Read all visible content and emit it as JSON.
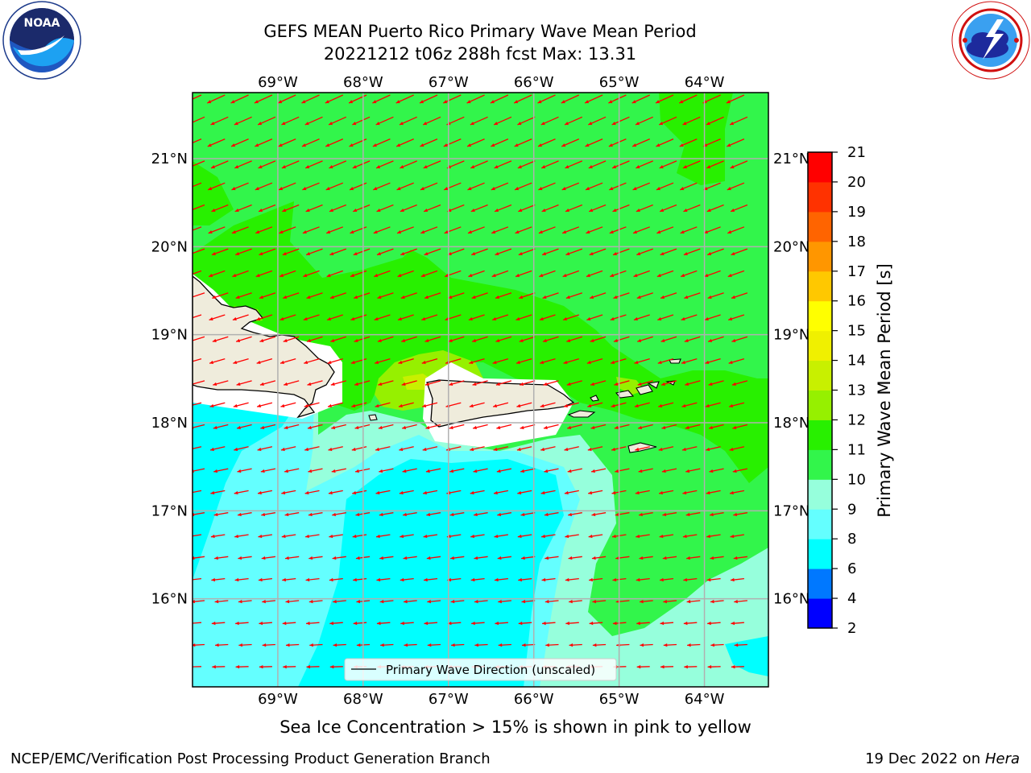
{
  "title": {
    "line1": "GEFS MEAN Puerto Rico Primary Wave Mean Period",
    "line2": "20221212 t06z 288h fcst   Max: 13.31"
  },
  "logos": {
    "left": "noaa-logo",
    "right": "nws-logo"
  },
  "map": {
    "lon_range": [
      -70,
      -63.25
    ],
    "lat_range": [
      15,
      21.75
    ],
    "lon_ticks": [
      "69°W",
      "68°W",
      "67°W",
      "66°W",
      "65°W",
      "64°W"
    ],
    "lat_ticks": [
      "16°N",
      "17°N",
      "18°N",
      "19°N",
      "20°N",
      "21°N"
    ],
    "land_color": "#efecdc",
    "arrow_color": "#ff0000",
    "legend_label": "Primary Wave Direction (unscaled)"
  },
  "colorbar": {
    "label": "Primary Wave Mean Period [s]",
    "ticks": [
      "2",
      "4",
      "6",
      "8",
      "9",
      "10",
      "11",
      "12",
      "13",
      "14",
      "15",
      "16",
      "17",
      "18",
      "19",
      "20",
      "21"
    ],
    "colors": [
      "#0000ff",
      "#0078ff",
      "#00ffff",
      "#64ffff",
      "#96ffdc",
      "#32f54b",
      "#28f000",
      "#96f000",
      "#c8f000",
      "#f0f000",
      "#ffff00",
      "#ffc800",
      "#ff9600",
      "#ff6400",
      "#ff3200",
      "#ff0000"
    ]
  },
  "caption": "Sea Ice Concentration > 15% is shown in pink to yellow",
  "footer": {
    "left": "NCEP/EMC/Verification Post Processing Product Generation Branch",
    "right_prefix": "19 Dec 2022 on ",
    "right_host": "Hera"
  }
}
